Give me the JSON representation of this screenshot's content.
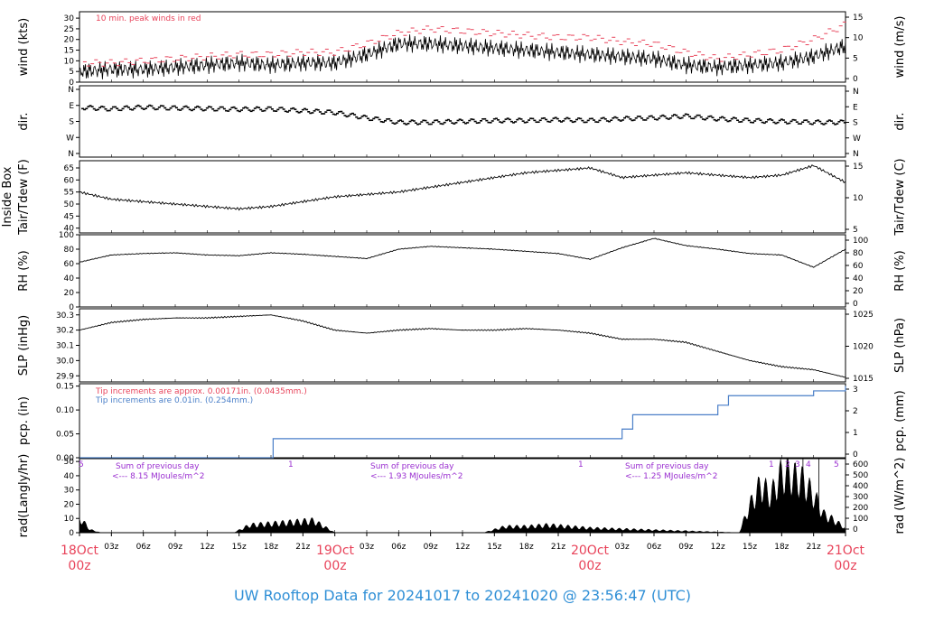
{
  "footer": "UW Rooftop Data for 20241017  to  20241020 @ 23:56:47  (UTC)",
  "colors": {
    "red": "#e8435a",
    "blue": "#4a7fc8",
    "purple": "#9a2fd0",
    "footer": "#2f8fd6"
  },
  "chart_data": [
    {
      "type": "line",
      "id": "wind",
      "ylabel": "wind (kts)",
      "ylabel_right": "wind (m/s)",
      "yticks": [
        "0",
        "5",
        "10",
        "15",
        "20",
        "25",
        "30"
      ],
      "yticks_right": [
        "0",
        "5",
        "10",
        "15"
      ],
      "annotation": "10 min. peak winds in red",
      "ylim": [
        0,
        33
      ],
      "x_hours": [
        0,
        3,
        6,
        9,
        12,
        15,
        18,
        21,
        24,
        27,
        30,
        33,
        36,
        39,
        42,
        45,
        48,
        51,
        54,
        57,
        60,
        63,
        66,
        69,
        72
      ],
      "series": [
        {
          "role": "mean",
          "values": [
            5,
            6,
            6,
            7,
            8,
            9,
            8,
            9,
            9,
            13,
            18,
            18,
            17,
            16,
            15,
            14,
            13,
            12,
            11,
            8,
            7,
            8,
            9,
            12,
            17
          ]
        },
        {
          "role": "peak",
          "values": [
            9,
            9,
            10,
            11,
            12,
            13,
            13,
            14,
            14,
            18,
            23,
            25,
            24,
            23,
            22,
            21,
            21,
            19,
            18,
            14,
            11,
            13,
            15,
            20,
            27
          ]
        }
      ]
    },
    {
      "type": "scatter",
      "id": "dir",
      "ylabel": "dir.",
      "ylabel_right": "dir.",
      "yticks": [
        "N",
        "W",
        "S",
        "E",
        "N"
      ],
      "yticks_right": [
        "N",
        "W",
        "S",
        "E",
        "N"
      ],
      "x_hours": [
        0,
        3,
        6,
        9,
        12,
        15,
        18,
        21,
        24,
        27,
        30,
        33,
        36,
        39,
        42,
        45,
        48,
        51,
        54,
        57,
        60,
        63,
        66,
        69,
        72
      ],
      "values_deg": [
        100,
        110,
        100,
        105,
        108,
        112,
        110,
        120,
        130,
        160,
        185,
        185,
        180,
        175,
        175,
        170,
        175,
        165,
        160,
        150,
        165,
        175,
        180,
        185,
        185
      ]
    },
    {
      "type": "line",
      "id": "temp",
      "ylabel": "Tair/Tdew (F)",
      "ylabel2": "Inside Box",
      "ylabel_right": "Tair/Tdew (C)",
      "yticks": [
        "40",
        "45",
        "50",
        "55",
        "60",
        "65"
      ],
      "yticks_right": [
        "5",
        "10",
        "15"
      ],
      "ylim": [
        38,
        68
      ],
      "x_hours": [
        0,
        3,
        6,
        9,
        12,
        15,
        18,
        21,
        24,
        27,
        30,
        33,
        36,
        39,
        42,
        45,
        48,
        51,
        54,
        57,
        60,
        63,
        66,
        69,
        72
      ],
      "values": [
        55,
        52,
        51,
        50,
        49,
        48,
        49,
        51,
        53,
        54,
        55,
        57,
        59,
        61,
        63,
        64,
        65,
        61,
        62,
        63,
        62,
        61,
        62,
        66,
        59
      ]
    },
    {
      "type": "line",
      "id": "rh",
      "ylabel": "RH (%)",
      "ylabel_right": "RH (%)",
      "yticks": [
        "0",
        "20",
        "40",
        "60",
        "80",
        "100"
      ],
      "yticks_right": [
        "0",
        "20",
        "40",
        "60",
        "80",
        "100"
      ],
      "ylim": [
        0,
        100
      ],
      "x_hours": [
        0,
        3,
        6,
        9,
        12,
        15,
        18,
        21,
        24,
        27,
        30,
        33,
        36,
        39,
        42,
        45,
        48,
        51,
        54,
        57,
        60,
        63,
        66,
        69,
        72
      ],
      "values": [
        62,
        72,
        74,
        75,
        72,
        71,
        75,
        73,
        70,
        67,
        80,
        84,
        82,
        80,
        77,
        74,
        66,
        82,
        95,
        85,
        80,
        74,
        72,
        55,
        80
      ]
    },
    {
      "type": "line",
      "id": "slp",
      "ylabel": "SLP (inHg)",
      "ylabel_right": "SLP (hPa)",
      "yticks": [
        "29.9",
        "30.0",
        "30.1",
        "30.2",
        "30.3"
      ],
      "yticks_right": [
        "1015",
        "1020",
        "1025"
      ],
      "ylim": [
        29.86,
        30.34
      ],
      "x_hours": [
        0,
        3,
        6,
        9,
        12,
        15,
        18,
        21,
        24,
        27,
        30,
        33,
        36,
        39,
        42,
        45,
        48,
        51,
        54,
        57,
        60,
        63,
        66,
        69,
        72
      ],
      "values": [
        30.2,
        30.25,
        30.27,
        30.28,
        30.28,
        30.29,
        30.3,
        30.26,
        30.2,
        30.18,
        30.2,
        30.21,
        30.2,
        30.2,
        30.21,
        30.2,
        30.18,
        30.14,
        30.14,
        30.12,
        30.06,
        30.0,
        29.96,
        29.94,
        29.89
      ]
    },
    {
      "type": "line",
      "id": "pcp",
      "ylabel": "pcp. (in)",
      "ylabel_right": "pcp. (mm)",
      "yticks": [
        "0.00",
        "0.05",
        "0.10",
        "0.15"
      ],
      "yticks_right": [
        "0",
        "1",
        "2",
        "3"
      ],
      "ylim": [
        0,
        0.155
      ],
      "annotation_red": "Tip increments are approx. 0.00171in. (0.0435mm.)",
      "annotation_blue": "Tip increments are 0.01in. (0.254mm.)",
      "x_hours": [
        0,
        17.8,
        18.2,
        50,
        51,
        52,
        59,
        60,
        61,
        68,
        69,
        71.5,
        72
      ],
      "values": [
        0,
        0,
        0.04,
        0.04,
        0.06,
        0.09,
        0.09,
        0.11,
        0.13,
        0.13,
        0.14,
        0.14,
        0.15
      ]
    },
    {
      "type": "area",
      "id": "rad",
      "ylabel": "rad(Langly/hr)",
      "ylabel_right": "rad (W/m^2)",
      "yticks": [
        "0",
        "10",
        "20",
        "30",
        "40",
        "50"
      ],
      "yticks_right": [
        "0",
        "100",
        "200",
        "300",
        "400",
        "500",
        "600"
      ],
      "ylim": [
        0,
        52
      ],
      "day_sums": [
        "Sum of previous day",
        "Sum of previous day",
        "Sum of previous day"
      ],
      "day_sum_values": [
        "<--- 8.15 MJoules/m^2",
        "<--- 1.93 MJoules/m^2",
        "<--- 1.25 MJoules/m^2"
      ],
      "marks": [
        "5",
        "1",
        "1",
        "1",
        "2",
        "3",
        "4",
        "5"
      ],
      "x_hours": [
        0,
        1,
        2,
        14.5,
        16,
        18,
        20,
        22,
        23.5,
        24,
        38,
        40,
        42,
        44,
        46,
        48,
        62,
        63,
        64,
        65,
        66,
        67,
        68,
        69,
        70,
        71,
        72
      ],
      "values": [
        10,
        2,
        0,
        0,
        5,
        6,
        7,
        8,
        2,
        0,
        0,
        4,
        4,
        5,
        4,
        3,
        0,
        18,
        32,
        25,
        40,
        38,
        35,
        25,
        12,
        8,
        3
      ]
    }
  ],
  "x_axis": {
    "hour_ticks": [
      "00z",
      "03z",
      "06z",
      "09z",
      "12z",
      "15z",
      "18z",
      "21z",
      "00z",
      "03z",
      "06z",
      "09z",
      "12z",
      "15z",
      "18z",
      "21z",
      "00z",
      "03z",
      "06z",
      "09z",
      "12z",
      "15z",
      "18z",
      "21z",
      "00z"
    ],
    "dates": [
      "18Oct",
      "19Oct",
      "20Oct",
      "21Oct"
    ],
    "date_hour": [
      "00z",
      "00z",
      "00z",
      "00z"
    ]
  }
}
